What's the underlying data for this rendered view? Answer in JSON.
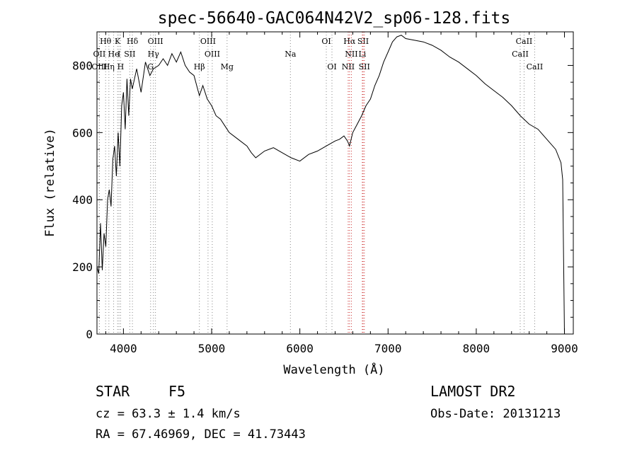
{
  "chart_data": {
    "type": "line",
    "title": "spec-56640-GAC064N42V2_sp06-128.fits",
    "xlabel": "Wavelength (Å)",
    "ylabel": "Flux (relative)",
    "xlim": [
      3700,
      9100
    ],
    "ylim": [
      0,
      900
    ],
    "x_ticks": [
      4000,
      5000,
      6000,
      7000,
      8000,
      9000
    ],
    "y_ticks": [
      0,
      200,
      400,
      600,
      800
    ],
    "grid": false,
    "series": [
      {
        "x": [
          3700,
          3720,
          3740,
          3760,
          3780,
          3800,
          3820,
          3840,
          3860,
          3880,
          3900,
          3920,
          3940,
          3960,
          3980,
          4000,
          4020,
          4040,
          4060,
          4080,
          4100,
          4150,
          4200,
          4250,
          4300,
          4340,
          4400,
          4450,
          4500,
          4550,
          4600,
          4650,
          4700,
          4750,
          4800,
          4861,
          4900,
          4950,
          5000,
          5050,
          5100,
          5150,
          5200,
          5300,
          5400,
          5450,
          5500,
          5600,
          5700,
          5800,
          5900,
          6000,
          6100,
          6200,
          6300,
          6400,
          6450,
          6500,
          6540,
          6563,
          6600,
          6650,
          6700,
          6750,
          6800,
          6850,
          6900,
          6950,
          7000,
          7050,
          7100,
          7150,
          7200,
          7300,
          7400,
          7500,
          7600,
          7700,
          7800,
          7900,
          8000,
          8100,
          8200,
          8300,
          8400,
          8500,
          8600,
          8700,
          8800,
          8900,
          8960,
          8980,
          9000
        ],
        "values": [
          200,
          180,
          330,
          190,
          300,
          260,
          400,
          430,
          380,
          520,
          560,
          470,
          600,
          500,
          680,
          720,
          610,
          760,
          650,
          760,
          730,
          790,
          720,
          810,
          770,
          790,
          800,
          820,
          800,
          835,
          810,
          840,
          800,
          780,
          770,
          710,
          740,
          700,
          680,
          650,
          640,
          620,
          600,
          580,
          560,
          540,
          525,
          545,
          555,
          540,
          525,
          515,
          535,
          545,
          560,
          575,
          580,
          590,
          575,
          560,
          600,
          625,
          650,
          680,
          700,
          740,
          770,
          810,
          840,
          870,
          885,
          890,
          880,
          875,
          870,
          860,
          845,
          825,
          810,
          790,
          770,
          745,
          725,
          705,
          680,
          650,
          625,
          610,
          580,
          550,
          510,
          460,
          0
        ]
      }
    ],
    "lines": [
      {
        "label": "Hθ",
        "wl": 3798,
        "row": 1,
        "color": "#888888"
      },
      {
        "label": "K",
        "wl": 3934,
        "row": 1,
        "color": "#888888"
      },
      {
        "label": "Hδ",
        "wl": 4102,
        "row": 1,
        "color": "#888888"
      },
      {
        "label": "OIII",
        "wl": 4363,
        "row": 1,
        "color": "#888888"
      },
      {
        "label": "OIII",
        "wl": 4959,
        "row": 1,
        "color": "#888888"
      },
      {
        "label": "OI",
        "wl": 6300,
        "row": 1,
        "color": "#888888"
      },
      {
        "label": "Hα",
        "wl": 6563,
        "row": 1,
        "color": "#cc3333"
      },
      {
        "label": "SII",
        "wl": 6717,
        "row": 1,
        "color": "#cc3333"
      },
      {
        "label": "CaII",
        "wl": 8542,
        "row": 1,
        "color": "#888888"
      },
      {
        "label": "OII",
        "wl": 3727,
        "row": 2,
        "color": "#888888"
      },
      {
        "label": "He",
        "wl": 3889,
        "row": 2,
        "color": "#888888"
      },
      {
        "label": "I",
        "wl": 3950,
        "row": 2,
        "color": "#888888"
      },
      {
        "label": "SII",
        "wl": 4072,
        "row": 2,
        "color": "#888888"
      },
      {
        "label": "Hγ",
        "wl": 4340,
        "row": 2,
        "color": "#888888"
      },
      {
        "label": "OIII",
        "wl": 5007,
        "row": 2,
        "color": "#888888"
      },
      {
        "label": "NII",
        "wl": 6584,
        "row": 2,
        "color": "#cc3333"
      },
      {
        "label": "Li",
        "wl": 6708,
        "row": 2,
        "color": "#cc3333"
      },
      {
        "label": "CaII",
        "wl": 8498,
        "row": 2,
        "color": "#888888"
      },
      {
        "label": "OIII",
        "wl": 3727,
        "row": 3,
        "color": "#888888"
      },
      {
        "label": "Hη",
        "wl": 3835,
        "row": 3,
        "color": "#888888"
      },
      {
        "label": "H",
        "wl": 3968,
        "row": 3,
        "color": "#888888"
      },
      {
        "label": "G",
        "wl": 4308,
        "row": 3,
        "color": "#888888"
      },
      {
        "label": "Hβ",
        "wl": 4861,
        "row": 3,
        "color": "#888888"
      },
      {
        "label": "Mg",
        "wl": 5175,
        "row": 3,
        "color": "#888888"
      },
      {
        "label": "Na",
        "wl": 5893,
        "row": 2,
        "color": "#888888"
      },
      {
        "label": "OI",
        "wl": 6364,
        "row": 3,
        "color": "#888888"
      },
      {
        "label": "NII",
        "wl": 6548,
        "row": 3,
        "color": "#cc3333"
      },
      {
        "label": "SII",
        "wl": 6731,
        "row": 3,
        "color": "#cc3333"
      },
      {
        "label": "CaII",
        "wl": 8662,
        "row": 3,
        "color": "#888888"
      }
    ]
  },
  "info": {
    "object_class": "STAR",
    "subclass": "F5",
    "survey": "LAMOST DR2",
    "cz": "cz = 63.3 ± 1.4 km/s",
    "obs_date": "Obs-Date: 20131213",
    "coords": "RA =  67.46969, DEC =  41.73443"
  }
}
